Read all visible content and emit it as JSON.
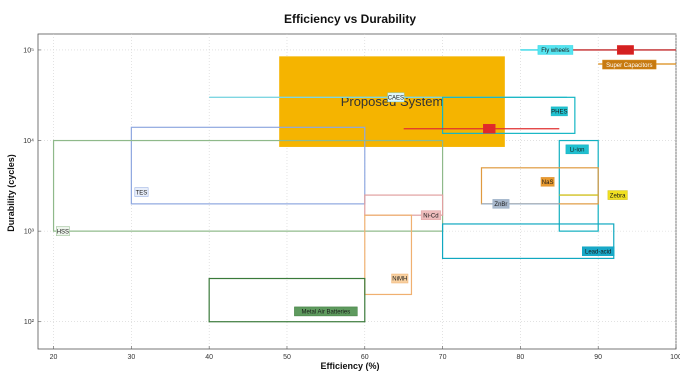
{
  "chart_data": {
    "type": "scatter",
    "title": "Efficiency vs Durability",
    "xlabel": "Efficiency (%)",
    "ylabel": "Durability (cycles)",
    "xlim": [
      18,
      100
    ],
    "ylim": [
      50,
      150000
    ],
    "yscale": "log",
    "grid": "dotted",
    "x_ticks": [
      20,
      30,
      40,
      50,
      60,
      70,
      80,
      90,
      100
    ],
    "y_ticks": [
      {
        "value": 100,
        "label": "10²"
      },
      {
        "value": 1000,
        "label": "10³"
      },
      {
        "value": 10000,
        "label": "10⁴"
      },
      {
        "value": 100000,
        "label": "10⁵"
      }
    ],
    "highlight": {
      "label": "Proposed System",
      "x_range": [
        49,
        78
      ],
      "y_range": [
        8500,
        85000
      ],
      "color": "#f5b400"
    },
    "technologies": [
      {
        "name": "Fly wheels",
        "eff": [
          80,
          100
        ],
        "cyc": [
          100000,
          100000
        ],
        "color": "#33d6e6",
        "label_at": [
          84.5,
          100000
        ],
        "fill": "#55e4f0"
      },
      {
        "name": "Super Capacitors",
        "eff": [
          90,
          100
        ],
        "cyc": [
          70000,
          70000
        ],
        "color": "#d98a14",
        "label_at": [
          94,
          69000
        ],
        "fill": "#c77a10",
        "text": "#ffffff"
      },
      {
        "name": "SMES",
        "eff": [
          85,
          100
        ],
        "cyc": [
          100000,
          100000
        ],
        "color": "#e23030",
        "label_at": [
          93.5,
          100000
        ],
        "fill": "#d42020",
        "text": "#d42020"
      },
      {
        "name": "CAES",
        "eff": [
          40,
          86
        ],
        "cyc": [
          30000,
          30000
        ],
        "color": "#7fd6e2",
        "label_at": [
          64,
          30000
        ],
        "fill": "#dff6fa"
      },
      {
        "name": "PHES",
        "eff": [
          70,
          87
        ],
        "cyc": [
          12000,
          30000
        ],
        "color": "#15b6c4",
        "label_at": [
          85,
          21000
        ],
        "fill": "#20c2d0"
      },
      {
        "name": "TES",
        "eff": [
          30,
          60
        ],
        "cyc": [
          2000,
          14000
        ],
        "color": "#8fa8e0",
        "label_at": [
          31.3,
          2700
        ],
        "fill": "#e8eefa"
      },
      {
        "name": "HSS",
        "eff": [
          20,
          70
        ],
        "cyc": [
          1000,
          10000
        ],
        "color": "#8fb98a",
        "label_at": [
          21.2,
          1000
        ],
        "fill": "#eef5ec"
      },
      {
        "name": "FB",
        "eff": [
          65,
          85
        ],
        "cyc": [
          13500,
          13500
        ],
        "color": "#e03030",
        "label_at": [
          76,
          13500
        ],
        "fill": "#e02a2a",
        "text": "#e02a2a"
      },
      {
        "name": "Li-ion",
        "eff": [
          85,
          90
        ],
        "cyc": [
          1000,
          10000
        ],
        "color": "#12b0c0",
        "label_at": [
          87.3,
          8000
        ],
        "fill": "#20c0d0"
      },
      {
        "name": "NaS",
        "eff": [
          75,
          90
        ],
        "cyc": [
          2000,
          5000
        ],
        "color": "#e09a40",
        "label_at": [
          83.5,
          3500
        ],
        "fill": "#e89a30"
      },
      {
        "name": "Zebra",
        "eff": [
          85,
          90
        ],
        "cyc": [
          2500,
          2500
        ],
        "color": "#d0c020",
        "label_at": [
          92.5,
          2500
        ],
        "fill": "#f0e020"
      },
      {
        "name": "ZnBr",
        "eff": [
          75,
          85
        ],
        "cyc": [
          2000,
          2000
        ],
        "color": "#9ab0c8",
        "label_at": [
          77.5,
          2000
        ],
        "fill": "#a8b8cc"
      },
      {
        "name": "Ni-Cd",
        "eff": [
          60,
          70
        ],
        "cyc": [
          1500,
          2500
        ],
        "color": "#e0a0a0",
        "label_at": [
          68.5,
          1500
        ],
        "fill": "#eebcbc"
      },
      {
        "name": "Lead-acid",
        "eff": [
          70,
          92
        ],
        "cyc": [
          500,
          1200
        ],
        "color": "#10a8c0",
        "label_at": [
          90,
          600
        ],
        "fill": "#18a8c8"
      },
      {
        "name": "NiMH",
        "eff": [
          60,
          66
        ],
        "cyc": [
          200,
          1500
        ],
        "color": "#f0b070",
        "label_at": [
          64.5,
          300
        ],
        "fill": "#f8d0a0"
      },
      {
        "name": "Metal Air Batteries",
        "eff": [
          40,
          60
        ],
        "cyc": [
          100,
          300
        ],
        "color": "#3a7a3a",
        "label_at": [
          55,
          130
        ],
        "fill": "#5e9a5e"
      }
    ]
  }
}
